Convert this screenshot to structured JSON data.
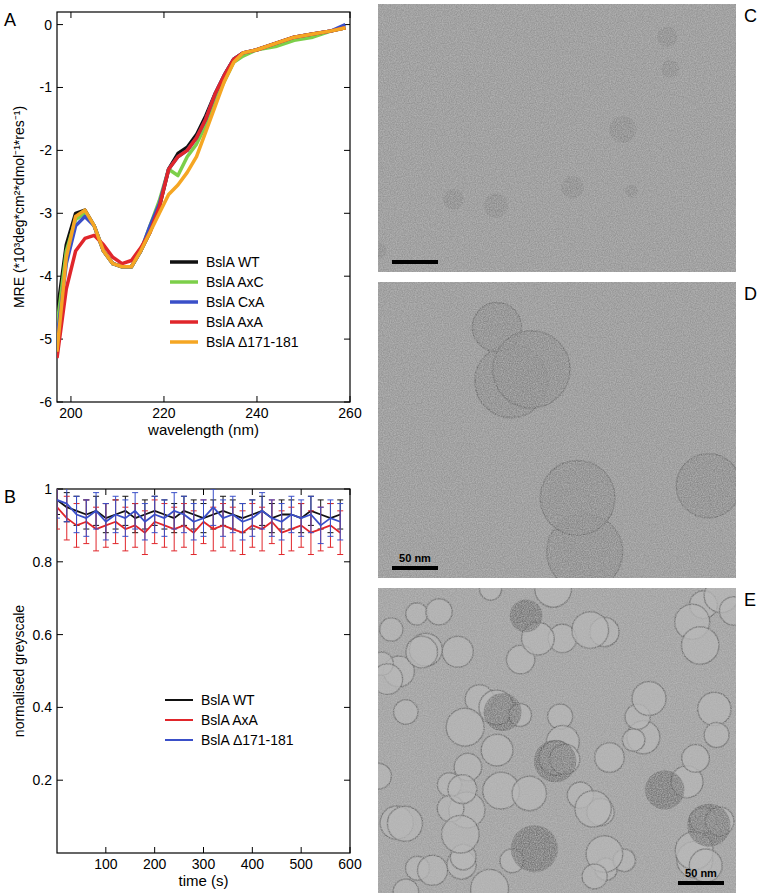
{
  "chart_data": [
    {
      "type": "line",
      "label": "A",
      "x_label": "wavelength (nm)",
      "y_label": "MRE (*10³deg*cm²*dmol⁻¹*res⁻¹)",
      "x": [
        197,
        199,
        201,
        203,
        205,
        207,
        209,
        211,
        213,
        215,
        217,
        219,
        221,
        223,
        225,
        227,
        229,
        231,
        233,
        235,
        237,
        240,
        244,
        248,
        252,
        256,
        259
      ],
      "xlim": [
        197,
        260
      ],
      "xticks": [
        200,
        220,
        240,
        260
      ],
      "ylim": [
        -6,
        0.2
      ],
      "yticks": [
        -6,
        -5,
        -4,
        -3,
        -2,
        -1,
        0
      ],
      "legend": "upper right",
      "series": [
        {
          "name": "BslA WT",
          "color": "#111111",
          "values": [
            -4.6,
            -3.5,
            -3.0,
            -2.95,
            -3.2,
            -3.6,
            -3.8,
            -3.85,
            -3.85,
            -3.6,
            -3.3,
            -2.9,
            -2.3,
            -2.05,
            -1.95,
            -1.75,
            -1.45,
            -1.1,
            -0.8,
            -0.55,
            -0.45,
            -0.4,
            -0.3,
            -0.2,
            -0.15,
            -0.1,
            -0.05
          ]
        },
        {
          "name": "BslA AxC",
          "color": "#7ccf4a",
          "values": [
            -4.8,
            -3.6,
            -3.1,
            -3.0,
            -3.2,
            -3.6,
            -3.8,
            -3.85,
            -3.85,
            -3.6,
            -3.2,
            -2.8,
            -2.3,
            -2.4,
            -2.1,
            -1.9,
            -1.6,
            -1.2,
            -0.9,
            -0.6,
            -0.5,
            -0.4,
            -0.35,
            -0.25,
            -0.2,
            -0.1,
            -0.05
          ]
        },
        {
          "name": "BslA CxA",
          "color": "#3a4fc8",
          "values": [
            -5.0,
            -3.8,
            -3.2,
            -3.05,
            -3.2,
            -3.6,
            -3.8,
            -3.85,
            -3.85,
            -3.6,
            -3.2,
            -2.85,
            -2.3,
            -2.1,
            -2.0,
            -1.8,
            -1.5,
            -1.1,
            -0.8,
            -0.55,
            -0.45,
            -0.4,
            -0.3,
            -0.2,
            -0.15,
            -0.1,
            0.0
          ]
        },
        {
          "name": "BslA AxA",
          "color": "#e0262b",
          "values": [
            -5.3,
            -4.2,
            -3.6,
            -3.4,
            -3.35,
            -3.5,
            -3.7,
            -3.8,
            -3.75,
            -3.55,
            -3.3,
            -2.9,
            -2.3,
            -2.1,
            -2.0,
            -1.8,
            -1.5,
            -1.1,
            -0.8,
            -0.55,
            -0.45,
            -0.4,
            -0.3,
            -0.2,
            -0.15,
            -0.1,
            -0.05
          ]
        },
        {
          "name": "BslA Δ171-181",
          "color": "#f5a623",
          "values": [
            -5.2,
            -3.7,
            -3.05,
            -2.95,
            -3.2,
            -3.6,
            -3.8,
            -3.85,
            -3.85,
            -3.6,
            -3.3,
            -3.0,
            -2.7,
            -2.55,
            -2.35,
            -2.1,
            -1.7,
            -1.3,
            -0.9,
            -0.6,
            -0.45,
            -0.4,
            -0.3,
            -0.2,
            -0.15,
            -0.1,
            -0.05
          ]
        }
      ]
    },
    {
      "type": "line",
      "label": "B",
      "x_label": "time (s)",
      "y_label": "normalised greyscale",
      "x": [
        0,
        20,
        40,
        60,
        80,
        100,
        120,
        140,
        160,
        180,
        200,
        220,
        240,
        260,
        280,
        300,
        320,
        340,
        360,
        380,
        400,
        420,
        440,
        460,
        480,
        500,
        520,
        540,
        560,
        580
      ],
      "xlim": [
        0,
        600
      ],
      "xticks": [
        100,
        200,
        300,
        400,
        500,
        600
      ],
      "ylim": [
        0,
        1
      ],
      "yticks": [
        0.2,
        0.4,
        0.6,
        0.8,
        1
      ],
      "legend": "center",
      "series": [
        {
          "name": "BslA WT",
          "color": "#111111",
          "values": [
            0.97,
            0.95,
            0.94,
            0.93,
            0.94,
            0.92,
            0.93,
            0.94,
            0.92,
            0.93,
            0.94,
            0.93,
            0.92,
            0.94,
            0.93,
            0.92,
            0.93,
            0.94,
            0.93,
            0.92,
            0.93,
            0.94,
            0.92,
            0.93,
            0.93,
            0.92,
            0.94,
            0.93,
            0.92,
            0.93
          ],
          "errors": [
            0.04,
            0.04,
            0.04,
            0.04,
            0.04,
            0.04,
            0.04,
            0.04,
            0.04,
            0.04,
            0.04,
            0.04,
            0.04,
            0.04,
            0.04,
            0.04,
            0.04,
            0.04,
            0.04,
            0.04,
            0.04,
            0.04,
            0.04,
            0.04,
            0.04,
            0.04,
            0.04,
            0.04,
            0.04,
            0.04
          ]
        },
        {
          "name": "BslA AxA",
          "color": "#e0262b",
          "values": [
            0.95,
            0.92,
            0.9,
            0.91,
            0.89,
            0.9,
            0.91,
            0.89,
            0.9,
            0.88,
            0.91,
            0.9,
            0.89,
            0.9,
            0.88,
            0.91,
            0.89,
            0.9,
            0.89,
            0.88,
            0.9,
            0.89,
            0.91,
            0.88,
            0.89,
            0.9,
            0.88,
            0.89,
            0.9,
            0.88
          ],
          "errors": [
            0.06,
            0.06,
            0.06,
            0.06,
            0.06,
            0.06,
            0.06,
            0.06,
            0.06,
            0.06,
            0.06,
            0.06,
            0.06,
            0.06,
            0.06,
            0.06,
            0.06,
            0.06,
            0.06,
            0.06,
            0.06,
            0.06,
            0.06,
            0.06,
            0.06,
            0.06,
            0.06,
            0.06,
            0.06,
            0.06
          ]
        },
        {
          "name": "BslA Δ171-181",
          "color": "#3a4fc8",
          "values": [
            0.97,
            0.96,
            0.93,
            0.92,
            0.94,
            0.91,
            0.93,
            0.92,
            0.94,
            0.91,
            0.93,
            0.92,
            0.94,
            0.93,
            0.91,
            0.92,
            0.95,
            0.92,
            0.93,
            0.91,
            0.92,
            0.94,
            0.92,
            0.91,
            0.93,
            0.92,
            0.93,
            0.9,
            0.92,
            0.91
          ],
          "errors": [
            0.05,
            0.05,
            0.05,
            0.05,
            0.05,
            0.05,
            0.05,
            0.05,
            0.05,
            0.05,
            0.05,
            0.05,
            0.05,
            0.05,
            0.05,
            0.05,
            0.05,
            0.05,
            0.05,
            0.05,
            0.05,
            0.05,
            0.05,
            0.05,
            0.05,
            0.05,
            0.05,
            0.05,
            0.05,
            0.05
          ]
        }
      ]
    }
  ],
  "micrographs": [
    {
      "label": "C"
    },
    {
      "label": "D",
      "scale_bar": "50 nm"
    },
    {
      "label": "E",
      "scale_bar": "50 nm"
    }
  ]
}
